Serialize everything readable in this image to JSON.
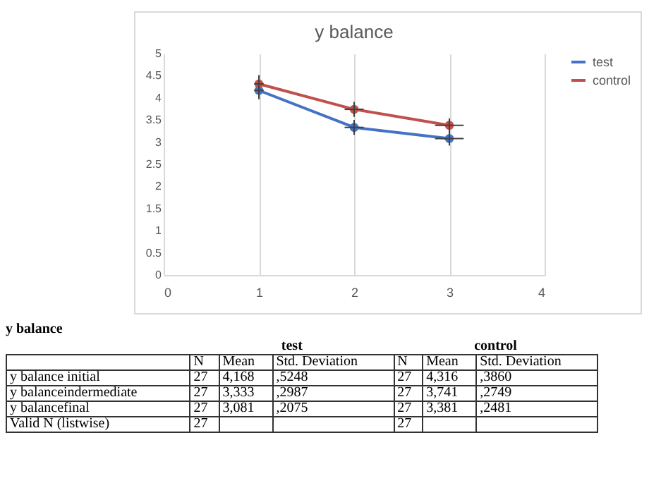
{
  "chart_data": [
    {
      "type": "line",
      "title": "y balance",
      "x": [
        1,
        2,
        3
      ],
      "series": [
        {
          "name": "test",
          "color": "#4472c4",
          "values": [
            4.168,
            3.333,
            3.081
          ],
          "errors": [
            0.2,
            0.17,
            0.16
          ],
          "xerrors": [
            0.05,
            0.1,
            0.15
          ]
        },
        {
          "name": "control",
          "color": "#c0504d",
          "values": [
            4.316,
            3.741,
            3.381
          ],
          "errors": [
            0.2,
            0.17,
            0.16
          ],
          "xerrors": [
            0.05,
            0.1,
            0.15
          ]
        }
      ],
      "xlim": [
        0,
        4
      ],
      "xticks": [
        0,
        1,
        2,
        3,
        4
      ],
      "ylim": [
        0,
        5
      ],
      "yticks": [
        0,
        0.5,
        1,
        1.5,
        2,
        2.5,
        3,
        3.5,
        4,
        4.5,
        5
      ],
      "grid": "x",
      "legend": "right",
      "marker": "circle",
      "line_style": "solid"
    },
    {
      "type": "other",
      "title": "y balance",
      "annotations": [
        "test",
        "control",
        "N",
        "Mean",
        "Std. Deviation",
        "N",
        "Mean",
        "Std. Deviation",
        "y balance initial",
        "27",
        "4,168",
        ",5248",
        "27",
        "4,316",
        ",3860",
        "y balanceindermediate",
        "27",
        "3,333",
        ",2987",
        "27",
        "3,741",
        ",2749",
        "y balancefinal",
        "27",
        "3,081",
        ",2075",
        "27",
        "3,381",
        ",2481",
        "Valid N (listwise)",
        "27",
        "27"
      ]
    }
  ]
}
